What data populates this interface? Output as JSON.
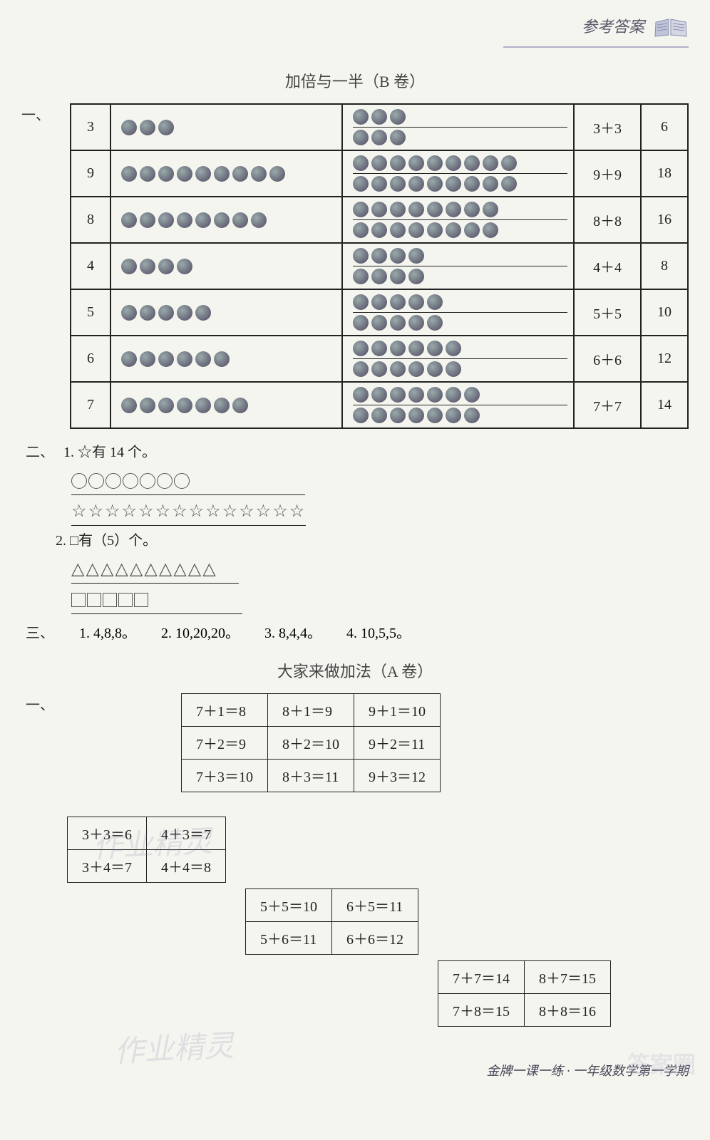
{
  "header": {
    "title": "参考答案"
  },
  "section_b_title": "加倍与一半（B 卷）",
  "table1_mark": "一、",
  "table1": [
    {
      "n": "3",
      "expr": "3＋3",
      "res": "6",
      "dots1": 3,
      "dots2a": 3,
      "dots2b": 3
    },
    {
      "n": "9",
      "expr": "9＋9",
      "res": "18",
      "dots1": 9,
      "dots2a": 9,
      "dots2b": 9
    },
    {
      "n": "8",
      "expr": "8＋8",
      "res": "16",
      "dots1": 8,
      "dots2a": 8,
      "dots2b": 8
    },
    {
      "n": "4",
      "expr": "4＋4",
      "res": "8",
      "dots1": 4,
      "dots2a": 4,
      "dots2b": 4
    },
    {
      "n": "5",
      "expr": "5＋5",
      "res": "10",
      "dots1": 5,
      "dots2a": 5,
      "dots2b": 5
    },
    {
      "n": "6",
      "expr": "6＋6",
      "res": "12",
      "dots1": 6,
      "dots2a": 6,
      "dots2b": 6
    },
    {
      "n": "7",
      "expr": "7＋7",
      "res": "14",
      "dots1": 7,
      "dots2a": 7,
      "dots2b": 7
    }
  ],
  "sec2_mark": "二、",
  "sec2_item1": "1. ☆有 14 个。",
  "sec2_circles": 7,
  "sec2_stars": 14,
  "sec2_item2": "2. □有（5）个。",
  "sec2_triangles": 10,
  "sec2_squares": 5,
  "sec3_mark": "三、",
  "sec3_items": [
    "1. 4,8,8。",
    "2. 10,20,20。",
    "3. 8,4,4。",
    "4. 10,5,5。"
  ],
  "section_a_title": "大家来做加法（A 卷）",
  "tableA_mark": "一、",
  "tables_add": [
    {
      "pos": "center",
      "rows": [
        [
          "7＋1＝8",
          "8＋1＝9",
          "9＋1＝10"
        ],
        [
          "7＋2＝9",
          "8＋2＝10",
          "9＋2＝11"
        ],
        [
          "7＋3＝10",
          "8＋3＝11",
          "9＋3＝12"
        ]
      ]
    },
    {
      "pos": "left",
      "rows": [
        [
          "3＋3＝6",
          "4＋3＝7"
        ],
        [
          "3＋4＝7",
          "4＋4＝8"
        ]
      ]
    },
    {
      "pos": "mid",
      "rows": [
        [
          "5＋5＝10",
          "6＋5＝11"
        ],
        [
          "5＋6＝11",
          "6＋6＝12"
        ]
      ]
    },
    {
      "pos": "right",
      "rows": [
        [
          "7＋7＝14",
          "8＋7＝15"
        ],
        [
          "7＋8＝15",
          "8＋8＝16"
        ]
      ]
    }
  ],
  "watermarks": {
    "w1": "作业精灵",
    "w2": "作业精灵"
  },
  "footer": "金牌一课一练 · 一年级数学第一学期",
  "cloud_wm": "答案圈"
}
